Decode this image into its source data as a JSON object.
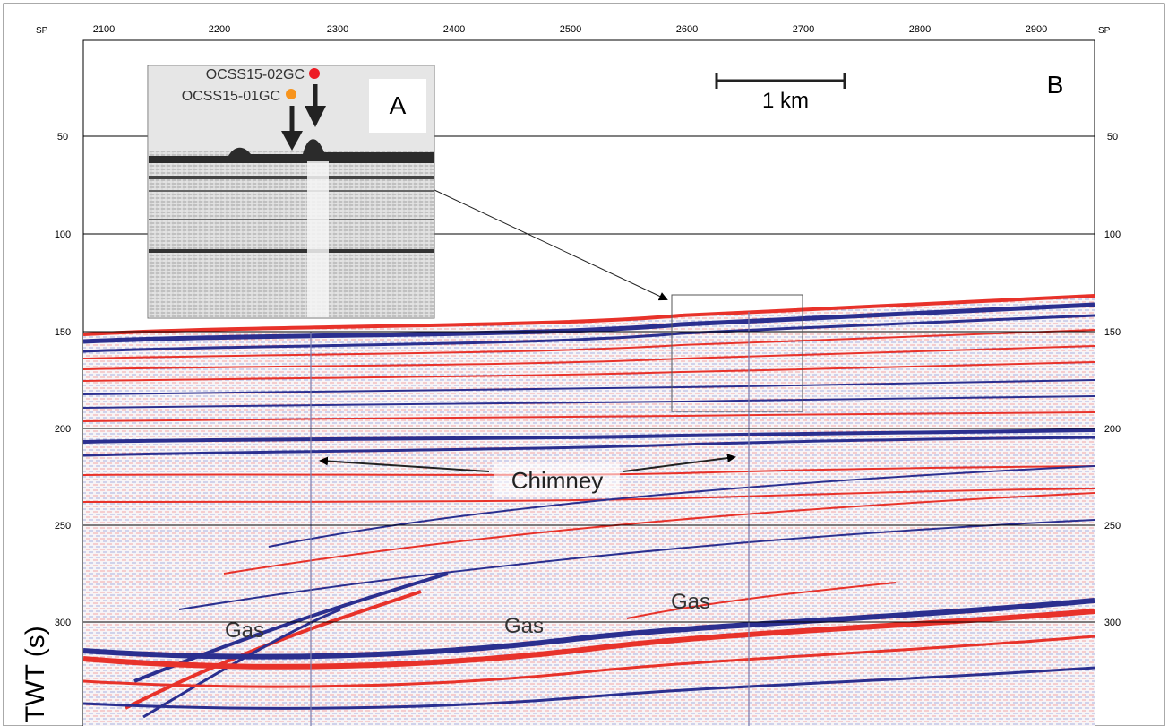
{
  "top_axis": {
    "left_label": "SP",
    "right_label": "SP",
    "ticks": [
      "2100",
      "2200",
      "2300",
      "2400",
      "2500",
      "2600",
      "2700",
      "2800",
      "2900"
    ]
  },
  "twt_axis": {
    "label": "TWT (s)",
    "ticks": [
      "50",
      "100",
      "150",
      "200",
      "250",
      "300"
    ]
  },
  "panel_b": {
    "label": "B",
    "scale_bar": "1 km"
  },
  "inset_a": {
    "label": "A",
    "core_1": {
      "name": "OCSS15-01GC",
      "color": "#f7941d"
    },
    "core_2": {
      "name": "OCSS15-02GC",
      "color": "#ed1c24"
    }
  },
  "annotations": {
    "chimney": "Chimney",
    "gas": [
      "Gas",
      "Gas",
      "Gas"
    ]
  },
  "colors": {
    "positive_reflector": "#e8322a",
    "negative_reflector": "#2b2f8f",
    "grid_line": "#000000"
  }
}
